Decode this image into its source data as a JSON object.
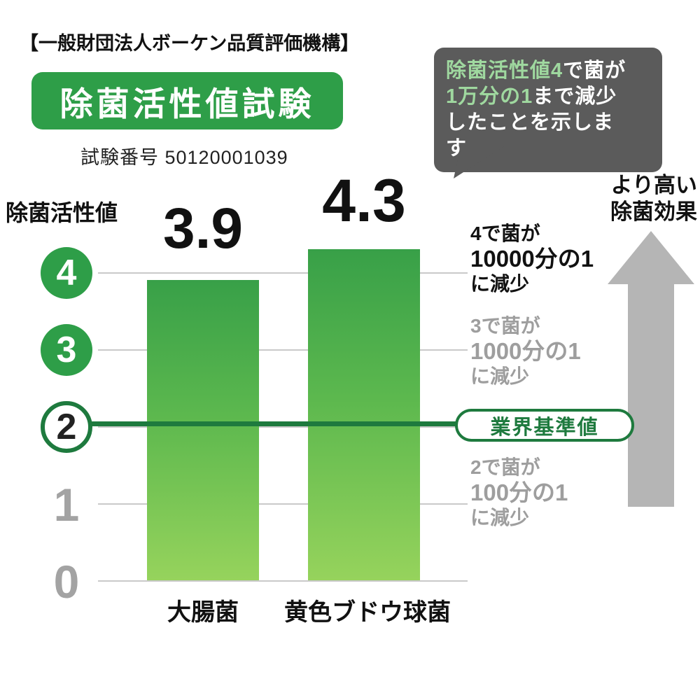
{
  "page": {
    "org_header": "【一般財団法人ボーケン品質評価機構】",
    "title": "除菌活性値試験",
    "test_number": "試験番号 50120001039"
  },
  "callout": {
    "line1_highlight": "除菌活性値4",
    "line1_rest": "で菌が",
    "line2_highlight": "1万分の1",
    "line2_rest": "まで減少",
    "line3": "したことを示します。"
  },
  "arrow_label": {
    "line1": "より高い",
    "line2": "除菌効果"
  },
  "axis": {
    "title": "除菌活性値",
    "ticks": [
      "4",
      "3",
      "2",
      "1",
      "0"
    ]
  },
  "annotations": {
    "level4": {
      "l1": "4で菌が",
      "l2": "10000分の1",
      "l3": "に減少"
    },
    "level3": {
      "l1": "3で菌が",
      "l2": "1000分の1",
      "l3": "に減少"
    },
    "level2": {
      "l1": "2で菌が",
      "l2": "100分の1",
      "l3": "に減少"
    },
    "standard_label": "業界基準値"
  },
  "chart_data": {
    "type": "bar",
    "title": "除菌活性値試験",
    "subtitle": "試験番号 50120001039",
    "categories": [
      "大腸菌",
      "黄色ブドウ球菌"
    ],
    "values": [
      3.9,
      4.3
    ],
    "value_labels": [
      "3.9",
      "4.3"
    ],
    "ylabel": "除菌活性値",
    "ylim": [
      0,
      4.5
    ],
    "yticks": [
      0,
      1,
      2,
      3,
      4
    ],
    "grid": true,
    "reference_line": {
      "value": 2,
      "label": "業界基準値"
    },
    "legend": "none"
  },
  "colors": {
    "brand_green": "#2e9e48",
    "dark_green": "#1e7a3e",
    "bubble_gray": "#5b5b5b",
    "arrow_gray": "#b5b5b5",
    "bar_gradient_top": "#38a048",
    "bar_gradient_bottom": "#96d35c"
  }
}
